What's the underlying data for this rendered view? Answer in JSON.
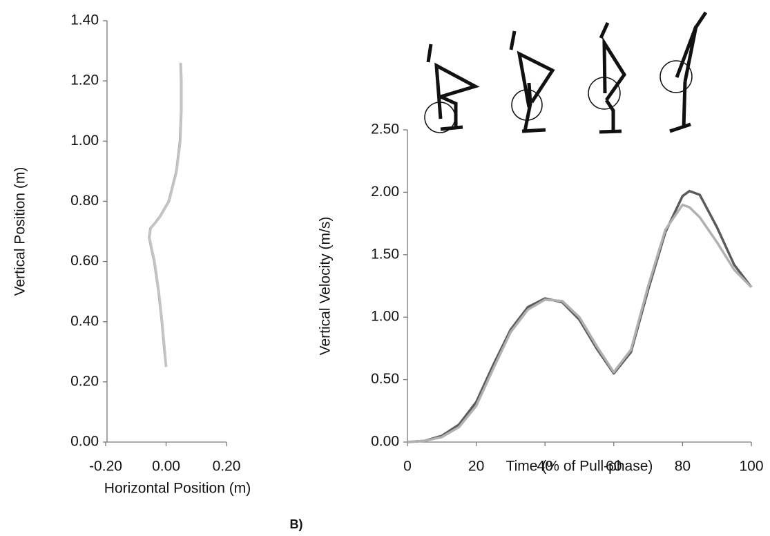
{
  "chart_data": [
    {
      "type": "line",
      "x_label": "Horizontal Position (m)",
      "y_label": "Vertical Position (m)",
      "xlim": [
        -0.2,
        0.2
      ],
      "xticks": [
        {
          "value": -0.2,
          "label": "-0.20"
        },
        {
          "value": 0,
          "label": "0.00"
        },
        {
          "value": 0.2,
          "label": "0.20"
        }
      ],
      "ylim": [
        0,
        1.4
      ],
      "yticks": [
        {
          "value": 0,
          "label": "0.00"
        },
        {
          "value": 0.2,
          "label": "0.20"
        },
        {
          "value": 0.4,
          "label": "0.40"
        },
        {
          "value": 0.6,
          "label": "0.60"
        },
        {
          "value": 0.8,
          "label": "0.80"
        },
        {
          "value": 1.0,
          "label": "1.00"
        },
        {
          "value": 1.2,
          "label": "1.20"
        },
        {
          "value": 1.4,
          "label": "1.40"
        }
      ],
      "series": [
        {
          "color": "#9a9a9a",
          "x": [
            0.0,
            -0.005,
            -0.014,
            -0.025,
            -0.039,
            -0.05,
            -0.056,
            -0.052,
            -0.035,
            -0.02,
            0.009,
            0.034,
            0.046,
            0.05,
            0.05,
            0.048
          ],
          "values": [
            0.25,
            0.3,
            0.4,
            0.5,
            0.6,
            0.65,
            0.68,
            0.71,
            0.73,
            0.75,
            0.8,
            0.9,
            1.0,
            1.1,
            1.2,
            1.26
          ]
        },
        {
          "color": "#c4c4c4",
          "x": [
            0.0,
            -0.004,
            -0.013,
            -0.024,
            -0.038,
            -0.049,
            -0.055,
            -0.051,
            -0.034,
            -0.019,
            0.01,
            0.035,
            0.047,
            0.051,
            0.051,
            0.049
          ],
          "values": [
            0.25,
            0.3,
            0.4,
            0.5,
            0.6,
            0.65,
            0.68,
            0.71,
            0.73,
            0.75,
            0.8,
            0.9,
            1.0,
            1.1,
            1.2,
            1.26
          ]
        }
      ]
    },
    {
      "type": "line",
      "x_label": "Time (% of Pull-phase)",
      "y_label": "Vertical Velocity (m/s)",
      "annotations": [
        "B)"
      ],
      "xlim": [
        0,
        100
      ],
      "xticks": [
        0,
        20,
        40,
        60,
        80,
        100
      ],
      "ylim": [
        0,
        2.5
      ],
      "yticks": [
        {
          "value": 0,
          "label": "0.00"
        },
        {
          "value": 0.5,
          "label": "0.50"
        },
        {
          "value": 1.0,
          "label": "1.00"
        },
        {
          "value": 1.5,
          "label": "1.50"
        },
        {
          "value": 2.0,
          "label": "2.00"
        },
        {
          "value": 2.5,
          "label": "2.50"
        }
      ],
      "series": [
        {
          "color": "#5a5a5a",
          "x": [
            0,
            5,
            10,
            15,
            20,
            25,
            30,
            35,
            40,
            45,
            50,
            55,
            60,
            65,
            70,
            75,
            80,
            82,
            85,
            90,
            95,
            100
          ],
          "values": [
            0,
            0.01,
            0.05,
            0.14,
            0.32,
            0.62,
            0.9,
            1.08,
            1.15,
            1.12,
            0.98,
            0.75,
            0.55,
            0.72,
            1.22,
            1.68,
            1.97,
            2.01,
            1.98,
            1.72,
            1.42,
            1.24
          ]
        },
        {
          "color": "#b0b0b0",
          "x": [
            0,
            5,
            10,
            15,
            20,
            25,
            30,
            35,
            40,
            45,
            50,
            55,
            60,
            65,
            70,
            75,
            80,
            82,
            85,
            90,
            95,
            100
          ],
          "values": [
            0,
            0.01,
            0.04,
            0.12,
            0.29,
            0.59,
            0.88,
            1.06,
            1.14,
            1.13,
            1.0,
            0.77,
            0.56,
            0.74,
            1.25,
            1.7,
            1.9,
            1.88,
            1.8,
            1.6,
            1.38,
            1.24
          ]
        }
      ]
    }
  ]
}
